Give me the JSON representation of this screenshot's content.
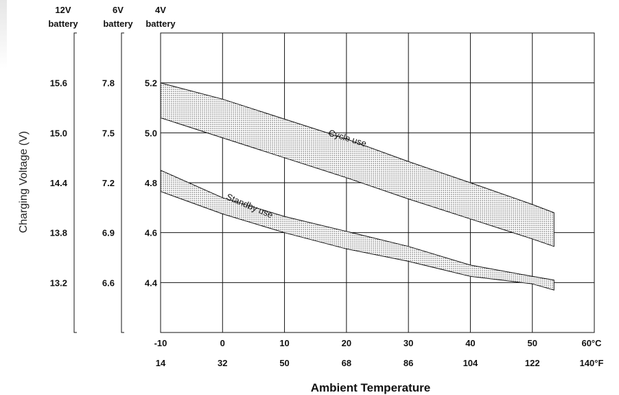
{
  "chart_data": {
    "type": "area",
    "xlabel": "Ambient Temperature",
    "ylabel": "Charging Voltage (V)",
    "x_axis": {
      "celsius_ticks": [
        "-10",
        "0",
        "10",
        "20",
        "30",
        "40",
        "50",
        "60°C"
      ],
      "fahrenheit_ticks": [
        "14",
        "32",
        "50",
        "68",
        "86",
        "104",
        "122",
        "140°F"
      ],
      "xlim": [
        -10,
        60
      ]
    },
    "y_axes": [
      {
        "header": [
          "12V",
          "battery"
        ],
        "ticks": [
          "15.6",
          "15.0",
          "14.4",
          "13.8",
          "13.2"
        ],
        "ylim": [
          12.6,
          16.2
        ]
      },
      {
        "header": [
          "6V",
          "battery"
        ],
        "ticks": [
          "7.8",
          "7.5",
          "7.2",
          "6.9",
          "6.6"
        ],
        "ylim": [
          6.3,
          8.1
        ]
      },
      {
        "header": [
          "4V",
          "battery"
        ],
        "ticks": [
          "5.2",
          "5.0",
          "4.8",
          "4.6",
          "4.4"
        ],
        "ylim": [
          4.2,
          5.4
        ]
      }
    ],
    "tick_values_4v": [
      5.2,
      5.0,
      4.8,
      4.6,
      4.4
    ],
    "grid": true,
    "series": [
      {
        "name": "Cycle use",
        "upper": {
          "x": [
            -10,
            0,
            10,
            20,
            30,
            40,
            50,
            53.5
          ],
          "y": [
            5.2,
            5.135,
            5.055,
            4.975,
            4.885,
            4.8,
            4.713,
            4.68
          ]
        },
        "lower": {
          "x": [
            -10,
            0,
            10,
            20,
            30,
            40,
            50,
            53.5
          ],
          "y": [
            5.06,
            4.98,
            4.9,
            4.82,
            4.735,
            4.655,
            4.575,
            4.545
          ]
        },
        "label_at": {
          "x": 17,
          "y": 4.99,
          "angle": 17
        }
      },
      {
        "name": "Standby use",
        "upper": {
          "x": [
            -10,
            0,
            10,
            20,
            30,
            40,
            50,
            53.5
          ],
          "y": [
            4.85,
            4.74,
            4.665,
            4.605,
            4.545,
            4.47,
            4.425,
            4.41
          ]
        },
        "lower": {
          "x": [
            -10,
            0,
            10,
            20,
            30,
            40,
            50,
            53.5
          ],
          "y": [
            4.765,
            4.675,
            4.6,
            4.535,
            4.485,
            4.425,
            4.395,
            4.37
          ]
        },
        "label_at": {
          "x": 0.5,
          "y": 4.735,
          "angle": 23
        }
      }
    ]
  }
}
